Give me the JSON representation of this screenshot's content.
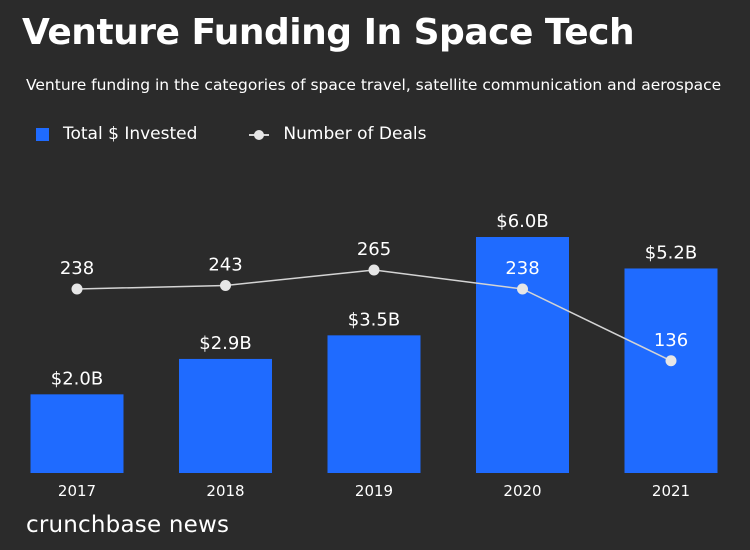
{
  "title": "Venture Funding In Space Tech",
  "subtitle": "Venture funding in the categories of space travel, satellite communication and aerospace",
  "brand": "crunchbase news",
  "colors": {
    "background": "#2b2b2b",
    "bar": "#1f6bff",
    "line": "#d4d4d4",
    "marker": "#e6e6e6",
    "text": "#ffffff"
  },
  "chart_data": {
    "type": "bar+line",
    "title": "Venture Funding In Space Tech",
    "subtitle": "Venture funding in the categories of space travel, satellite communication and aerospace",
    "categories": [
      "2017",
      "2018",
      "2019",
      "2020",
      "2021"
    ],
    "legend": [
      "Total $ Invested",
      "Number of Deals"
    ],
    "legend_position": "top-left",
    "series": [
      {
        "name": "Total $ Invested",
        "type": "bar",
        "values": [
          2.0,
          2.9,
          3.5,
          6.0,
          5.2
        ],
        "labels": [
          "$2.0B",
          "$2.9B",
          "$3.5B",
          "$6.0B",
          "$5.2B"
        ],
        "unit": "$B"
      },
      {
        "name": "Number of Deals",
        "type": "line",
        "values": [
          238,
          243,
          265,
          238,
          136
        ],
        "labels": [
          "238",
          "243",
          "265",
          "238",
          "136"
        ]
      }
    ],
    "grid": false
  }
}
